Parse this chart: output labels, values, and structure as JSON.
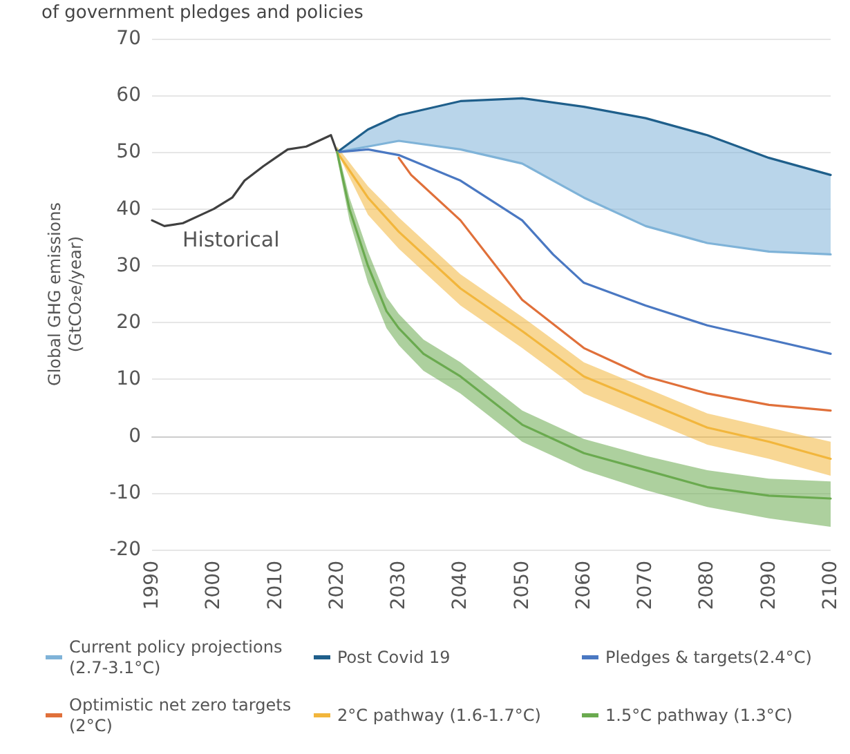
{
  "chart_data": {
    "type": "line",
    "title": "of government pledges and policies",
    "ylabel": "Global GHG emissions\n(GtCO₂e/year)",
    "xlim": [
      1990,
      2100
    ],
    "xticks": [
      1990,
      2000,
      2010,
      2020,
      2030,
      2040,
      2050,
      2060,
      2070,
      2080,
      2090,
      2100
    ],
    "ylim": [
      -20,
      70
    ],
    "yticks": [
      -20,
      -10,
      0,
      10,
      20,
      30,
      40,
      50,
      60,
      70
    ],
    "grid": "y",
    "legend": "bottom",
    "marker": "none",
    "line_style": "solid",
    "annotations": [
      "Historical"
    ],
    "series": [
      {
        "color": "#404040",
        "x": [
          1990,
          1992,
          1995,
          1998,
          2000,
          2003,
          2005,
          2008,
          2010,
          2012,
          2015,
          2017,
          2019,
          2020
        ],
        "values": [
          38,
          37,
          37.5,
          39,
          40,
          42,
          45,
          47.5,
          49,
          50.5,
          51,
          52,
          53,
          50
        ]
      },
      {
        "name": "Current policy projections (2.7-3.1°C)",
        "color": "#7fb3d8",
        "x": [
          2020,
          2025,
          2030,
          2040,
          2050,
          2060,
          2070,
          2080,
          2090,
          2100
        ],
        "values": [
          50,
          51,
          52,
          50.5,
          48,
          42,
          37,
          34,
          32.5,
          32
        ],
        "lower": [
          50,
          51,
          52,
          50.5,
          48,
          42,
          37,
          34,
          32.5,
          32
        ],
        "upper": [
          50,
          54,
          56.5,
          59,
          59.5,
          58,
          56,
          53,
          49,
          46
        ]
      },
      {
        "name": "Post Covid 19",
        "color": "#1f5f8b",
        "x": [
          2020,
          2025,
          2030,
          2040,
          2050,
          2060,
          2070,
          2080,
          2090,
          2100
        ],
        "values": [
          50,
          54,
          56.5,
          59,
          59.5,
          58,
          56,
          53,
          49,
          46
        ]
      },
      {
        "name": "Pledges & targets(2.4°C)",
        "color": "#4a78c2",
        "x": [
          2020,
          2025,
          2030,
          2040,
          2050,
          2055,
          2060,
          2070,
          2080,
          2090,
          2100
        ],
        "values": [
          50,
          50.5,
          49.5,
          45,
          38,
          32,
          27,
          23,
          19.5,
          17,
          14.5
        ]
      },
      {
        "name": "Optimistic net zero targets (2°C)",
        "color": "#e0703a",
        "x": [
          2030,
          2032,
          2040,
          2050,
          2060,
          2070,
          2080,
          2090,
          2100
        ],
        "values": [
          49,
          46,
          38,
          24,
          15.5,
          10.5,
          7.5,
          5.5,
          4.5
        ]
      },
      {
        "name": "2°C pathway (1.6-1.7°C)",
        "color": "#f2b63c",
        "x": [
          2020,
          2025,
          2030,
          2040,
          2050,
          2060,
          2070,
          2080,
          2090,
          2100
        ],
        "values": [
          50,
          42,
          36,
          26,
          18.5,
          10.5,
          6,
          1.5,
          -1,
          -4
        ],
        "lower": [
          50,
          39,
          33,
          23,
          15.5,
          7.5,
          3,
          -1.5,
          -4,
          -7
        ],
        "upper": [
          51,
          44,
          38.5,
          28.5,
          21,
          13,
          8.5,
          4,
          1.5,
          -1
        ]
      },
      {
        "name": "1.5°C pathway (1.3°C)",
        "color": "#6aaa4f",
        "x": [
          2020,
          2022,
          2025,
          2028,
          2030,
          2034,
          2040,
          2050,
          2060,
          2070,
          2080,
          2090,
          2100
        ],
        "values": [
          50,
          40,
          30,
          22,
          19,
          14.5,
          10.5,
          2,
          -3,
          -6,
          -9,
          -10.5,
          -11
        ],
        "lower": [
          49,
          38,
          27,
          19,
          16,
          11.5,
          7.5,
          -1,
          -6,
          -9.5,
          -12.5,
          -14.5,
          -16
        ],
        "upper": [
          51,
          42,
          32.5,
          24.5,
          21.5,
          17,
          13,
          4.5,
          -0.5,
          -3.5,
          -6,
          -7.5,
          -8
        ]
      }
    ]
  }
}
